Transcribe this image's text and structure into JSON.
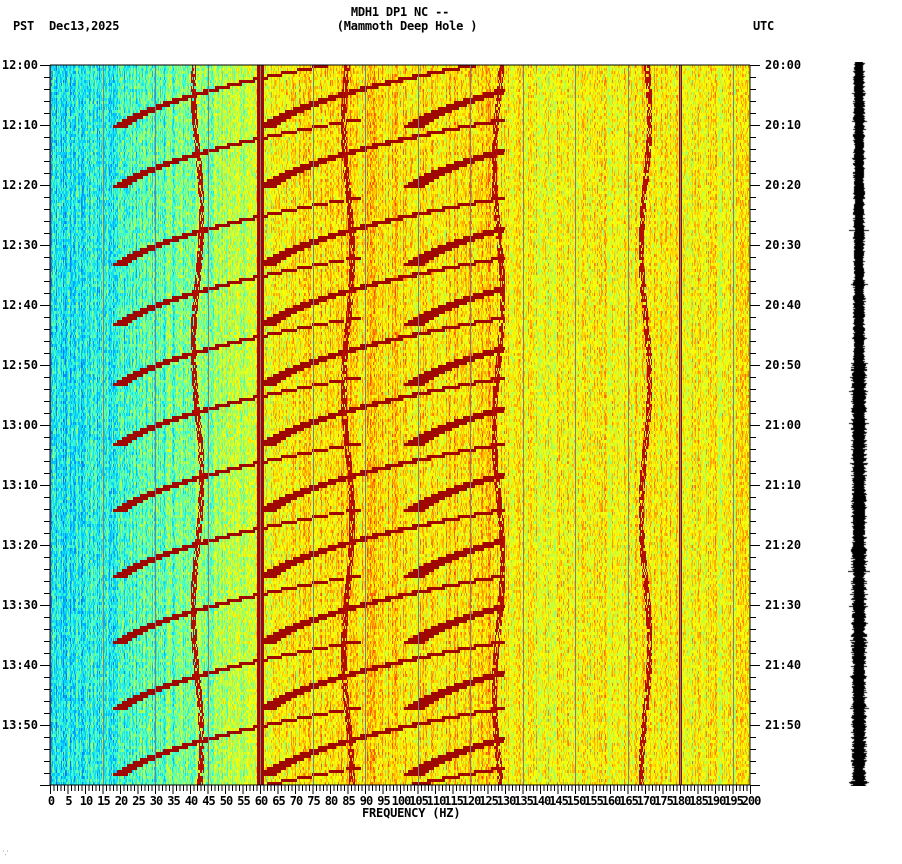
{
  "header": {
    "title_line1": "MDH1 DP1 NC --",
    "title_line2": "(Mammoth Deep Hole )",
    "left_timezone": "PST",
    "date": "Dec13,2025",
    "right_timezone": "UTC"
  },
  "footer": {
    "corner_mark": "⸪"
  },
  "colors": {
    "background": "#ffffff",
    "axis": "#000000",
    "gridline": "#808080",
    "waveform": "#000000",
    "colormap": [
      "#0000b0",
      "#0060ff",
      "#00c8ff",
      "#40ffd0",
      "#b0ff50",
      "#ffff00",
      "#ffa000",
      "#ff2000",
      "#800000"
    ]
  },
  "chart_data": {
    "type": "heatmap",
    "title": "MDH1 DP1 NC -- (Mammoth Deep Hole )",
    "subtitle": "Dec13,2025",
    "xlabel": "FREQUENCY (HZ)",
    "ylabel_left": "PST",
    "ylabel_right": "UTC",
    "xlim": [
      0,
      200
    ],
    "x_ticks": [
      0,
      5,
      10,
      15,
      20,
      25,
      30,
      35,
      40,
      45,
      50,
      55,
      60,
      65,
      70,
      75,
      80,
      85,
      90,
      95,
      100,
      105,
      110,
      115,
      120,
      125,
      130,
      135,
      140,
      145,
      150,
      155,
      160,
      165,
      170,
      175,
      180,
      185,
      190,
      195,
      200
    ],
    "x_tick_minor_step": 1,
    "y_ticks_left": [
      "12:00",
      "12:10",
      "12:20",
      "12:30",
      "12:40",
      "12:50",
      "13:00",
      "13:10",
      "13:20",
      "13:30",
      "13:40",
      "13:50"
    ],
    "y_ticks_right": [
      "20:00",
      "20:10",
      "20:20",
      "20:30",
      "20:40",
      "20:50",
      "21:00",
      "21:10",
      "21:20",
      "21:30",
      "21:40",
      "21:50"
    ],
    "y_range_minutes": [
      0,
      120
    ],
    "y_tick_minor_step_minutes": 1,
    "gridlines_hz_every": 15,
    "features": {
      "constant_lines_hz": [
        60,
        180
      ],
      "low_freq_quiet_band_hz": [
        0,
        35
      ],
      "sweep_start_minutes": [
        0,
        10,
        23,
        33,
        43,
        53,
        64,
        75,
        86,
        97,
        108,
        118
      ],
      "sweep_low_freq_start_hz": 20,
      "sweep_harmonic_spacing_hz": 42,
      "wandering_lines_hz": [
        42,
        85,
        128,
        170
      ]
    },
    "grid": true,
    "legend": "none",
    "seismogram_trace": "waveform strip at right of spectrogram"
  }
}
